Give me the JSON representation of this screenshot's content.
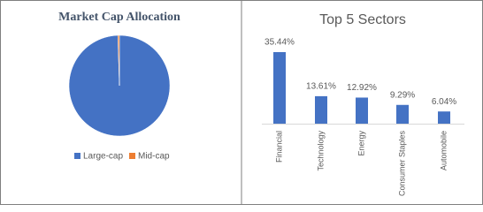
{
  "chart_data": [
    {
      "type": "pie",
      "title": "Market Cap Allocation",
      "categories": [
        "Large-cap",
        "Mid-cap"
      ],
      "values": [
        99.5,
        0.5
      ],
      "colors": [
        "#4472c4",
        "#ed7d31"
      ],
      "legend": "bottom"
    },
    {
      "type": "bar",
      "title": "Top 5 Sectors",
      "categories": [
        "Financial",
        "Technology",
        "Energy",
        "Consumer Staples",
        "Automobile"
      ],
      "values": [
        35.44,
        13.61,
        12.92,
        9.29,
        6.04
      ],
      "value_labels": [
        "35.44%",
        "13.61%",
        "12.92%",
        "9.29%",
        "6.04%"
      ],
      "color": "#4472c4"
    }
  ]
}
